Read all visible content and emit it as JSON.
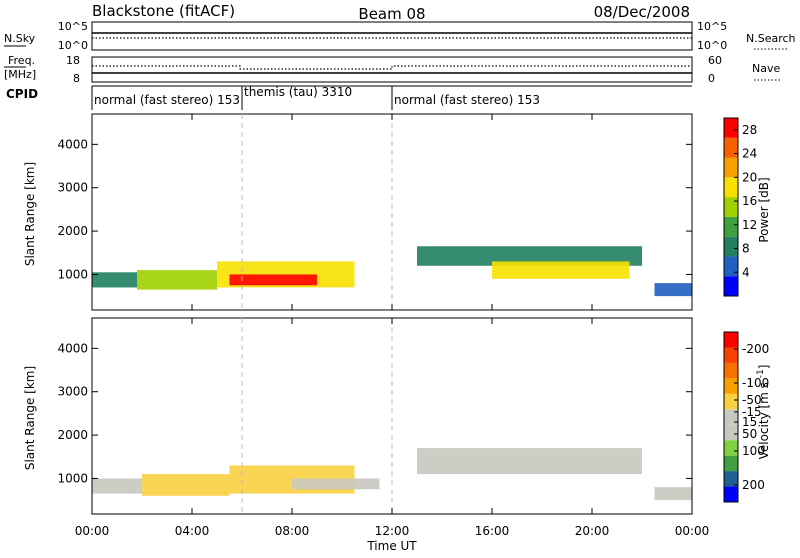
{
  "header": {
    "station": "Blackstone (fitACF)",
    "beam": "Beam 08",
    "date": "08/Dec/2008"
  },
  "status_panel": {
    "left_labels": [
      "N.Sky",
      "Freq.",
      "[MHz]",
      "CPID"
    ],
    "right_labels": [
      "N.Search",
      "Nave"
    ],
    "nsky_axis_ticks": [
      "10^5",
      "10^0"
    ],
    "freq_axis_ticks": [
      "18",
      "8"
    ],
    "nave_axis_ticks": [
      "60",
      "0"
    ],
    "cpid_segments": [
      {
        "label": "normal (fast stereo) 153",
        "start_h": 0,
        "end_h": 6
      },
      {
        "label": "themis (tau) 3310",
        "start_h": 6,
        "end_h": 12
      },
      {
        "label": "normal (fast stereo) 153",
        "start_h": 12,
        "end_h": 24
      }
    ]
  },
  "colors": {
    "power_scale": [
      "#0000ff",
      "#2060c0",
      "#208060",
      "#40a040",
      "#a0d000",
      "#f8e000",
      "#f8a000",
      "#f86000",
      "#ff0000"
    ],
    "velocity_scale": [
      "#ff0000",
      "#f84000",
      "#f87000",
      "#f8a000",
      "#f8d040",
      "#c8c8c0",
      "#c8c8c0",
      "#80d040",
      "#40a040",
      "#206090",
      "#0000ff"
    ]
  },
  "chart_data": [
    {
      "type": "heatmap",
      "title": "",
      "xlabel": "Time UT",
      "ylabel": "Slant Range [km]",
      "xlim": [
        0,
        24
      ],
      "ylim": [
        180,
        4700
      ],
      "x_ticks": [
        "00:00",
        "04:00",
        "08:00",
        "12:00",
        "16:00",
        "20:00",
        "00:00"
      ],
      "y_ticks": [
        "1000",
        "2000",
        "3000",
        "4000"
      ],
      "y_tick_values": [
        1000,
        2000,
        3000,
        4000
      ],
      "colorbar": {
        "label": "Power [dB]",
        "ticks": [
          "4",
          "8",
          "12",
          "16",
          "20",
          "24",
          "28"
        ],
        "tick_values": [
          4,
          8,
          12,
          16,
          20,
          24,
          28
        ],
        "range": [
          0,
          30
        ]
      },
      "regions": [
        {
          "t0": 0.0,
          "t1": 1.8,
          "r0": 700,
          "r1": 1050,
          "level": 8
        },
        {
          "t0": 1.8,
          "t1": 5.0,
          "r0": 650,
          "r1": 1100,
          "level": 15
        },
        {
          "t0": 5.0,
          "t1": 10.5,
          "r0": 700,
          "r1": 1300,
          "level": 19
        },
        {
          "t0": 5.5,
          "t1": 9.0,
          "r0": 750,
          "r1": 1000,
          "level": 28
        },
        {
          "t0": 13.0,
          "t1": 22.0,
          "r0": 1200,
          "r1": 1650,
          "level": 8
        },
        {
          "t0": 16.0,
          "t1": 21.5,
          "r0": 900,
          "r1": 1300,
          "level": 19
        },
        {
          "t0": 22.5,
          "t1": 24.0,
          "r0": 500,
          "r1": 800,
          "level": 6
        }
      ]
    },
    {
      "type": "heatmap",
      "title": "",
      "xlabel": "Time UT",
      "ylabel": "Slant Range [km]",
      "xlim": [
        0,
        24
      ],
      "ylim": [
        180,
        4700
      ],
      "x_ticks": [
        "00:00",
        "04:00",
        "08:00",
        "12:00",
        "16:00",
        "20:00",
        "00:00"
      ],
      "y_ticks": [
        "1000",
        "2000",
        "3000",
        "4000"
      ],
      "y_tick_values": [
        1000,
        2000,
        3000,
        4000
      ],
      "colorbar": {
        "label": "Velocity [m s^-1]",
        "ticks": [
          "200",
          "100",
          "50",
          "15",
          "-15",
          "-50",
          "-100",
          "-200"
        ],
        "tick_values": [
          200,
          100,
          50,
          15,
          -15,
          -50,
          -100,
          -200
        ],
        "range": [
          -250,
          250
        ]
      },
      "regions": [
        {
          "t0": 0.0,
          "t1": 2.0,
          "r0": 650,
          "r1": 1000,
          "level": -20
        },
        {
          "t0": 2.0,
          "t1": 5.5,
          "r0": 600,
          "r1": 1100,
          "level": -60
        },
        {
          "t0": 5.5,
          "t1": 10.5,
          "r0": 650,
          "r1": 1300,
          "level": -55
        },
        {
          "t0": 8.0,
          "t1": 11.5,
          "r0": 750,
          "r1": 1000,
          "level": 0
        },
        {
          "t0": 13.0,
          "t1": 22.0,
          "r0": 1100,
          "r1": 1700,
          "level": 0
        },
        {
          "t0": 22.5,
          "t1": 24.0,
          "r0": 500,
          "r1": 800,
          "level": 0
        }
      ]
    }
  ]
}
